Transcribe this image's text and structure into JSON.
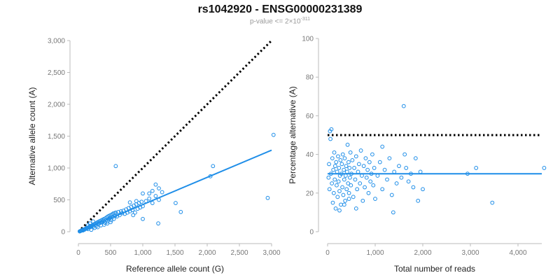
{
  "header": {
    "title": "rs1042920 - ENSG00000231389",
    "subtitle_prefix": "p-value <= 2×10",
    "subtitle_exp": "-311"
  },
  "colors": {
    "points": "#1f8ee8",
    "fit": "#1f8ee8",
    "reference": "#000000",
    "axis": "#bbbbbb"
  },
  "chart_data": [
    {
      "type": "scatter",
      "xlabel": "Reference allele count (G)",
      "ylabel": "Alternative allele count (A)",
      "xlim": [
        0,
        3000
      ],
      "ylim": [
        0,
        3000
      ],
      "xticks": [
        0,
        500,
        1000,
        1500,
        2000,
        2500,
        3000
      ],
      "yticks": [
        0,
        500,
        1000,
        1500,
        2000,
        2500,
        3000
      ],
      "xtick_labels": [
        "0",
        "500",
        "1,000",
        "1,500",
        "2,000",
        "2,500",
        "3,000"
      ],
      "ytick_labels": [
        "0",
        "500",
        "1,000",
        "1,500",
        "2,000",
        "2,500",
        "3,000"
      ],
      "reference_line": {
        "style": "dotted",
        "from": [
          0,
          0
        ],
        "to": [
          3000,
          3000
        ]
      },
      "fit_line": {
        "from": [
          0,
          0
        ],
        "to": [
          3000,
          1280
        ]
      },
      "points": [
        [
          20,
          5
        ],
        [
          30,
          10
        ],
        [
          40,
          15
        ],
        [
          50,
          20
        ],
        [
          60,
          25
        ],
        [
          70,
          20
        ],
        [
          80,
          35
        ],
        [
          90,
          30
        ],
        [
          100,
          40
        ],
        [
          110,
          45
        ],
        [
          120,
          55
        ],
        [
          130,
          50
        ],
        [
          140,
          60
        ],
        [
          150,
          40
        ],
        [
          160,
          70
        ],
        [
          170,
          65
        ],
        [
          180,
          90
        ],
        [
          190,
          75
        ],
        [
          200,
          85
        ],
        [
          210,
          95
        ],
        [
          220,
          100
        ],
        [
          230,
          80
        ],
        [
          240,
          110
        ],
        [
          250,
          120
        ],
        [
          260,
          105
        ],
        [
          270,
          130
        ],
        [
          280,
          90
        ],
        [
          290,
          140
        ],
        [
          300,
          150
        ],
        [
          310,
          125
        ],
        [
          320,
          160
        ],
        [
          330,
          135
        ],
        [
          340,
          170
        ],
        [
          350,
          145
        ],
        [
          360,
          180
        ],
        [
          370,
          155
        ],
        [
          380,
          190
        ],
        [
          390,
          170
        ],
        [
          400,
          200
        ],
        [
          410,
          140
        ],
        [
          420,
          210
        ],
        [
          430,
          185
        ],
        [
          440,
          225
        ],
        [
          450,
          160
        ],
        [
          460,
          240
        ],
        [
          470,
          200
        ],
        [
          480,
          250
        ],
        [
          490,
          215
        ],
        [
          500,
          260
        ],
        [
          510,
          180
        ],
        [
          520,
          270
        ],
        [
          530,
          230
        ],
        [
          540,
          285
        ],
        [
          550,
          200
        ],
        [
          560,
          290
        ],
        [
          570,
          250
        ],
        [
          580,
          300
        ],
        [
          600,
          240
        ],
        [
          620,
          310
        ],
        [
          640,
          260
        ],
        [
          660,
          320
        ],
        [
          680,
          290
        ],
        [
          700,
          330
        ],
        [
          720,
          280
        ],
        [
          740,
          350
        ],
        [
          760,
          300
        ],
        [
          780,
          370
        ],
        [
          800,
          320
        ],
        [
          820,
          390
        ],
        [
          840,
          340
        ],
        [
          860,
          410
        ],
        [
          880,
          300
        ],
        [
          900,
          430
        ],
        [
          920,
          360
        ],
        [
          940,
          450
        ],
        [
          960,
          380
        ],
        [
          980,
          470
        ],
        [
          1000,
          400
        ],
        [
          1050,
          480
        ],
        [
          1100,
          520
        ],
        [
          1150,
          450
        ],
        [
          1200,
          560
        ],
        [
          1250,
          500
        ],
        [
          1300,
          620
        ],
        [
          1000,
          600
        ],
        [
          1100,
          600
        ],
        [
          1150,
          640
        ],
        [
          1200,
          740
        ],
        [
          1250,
          680
        ],
        [
          900,
          480
        ],
        [
          800,
          460
        ],
        [
          1000,
          200
        ],
        [
          850,
          260
        ],
        [
          1240,
          130
        ],
        [
          1510,
          450
        ],
        [
          1590,
          310
        ],
        [
          2050,
          870
        ],
        [
          2090,
          1030
        ],
        [
          2940,
          530
        ],
        [
          3030,
          1520
        ],
        [
          580,
          1030
        ],
        [
          200,
          30
        ],
        [
          250,
          60
        ],
        [
          300,
          70
        ],
        [
          350,
          100
        ],
        [
          400,
          110
        ],
        [
          450,
          130
        ],
        [
          500,
          150
        ],
        [
          150,
          100
        ],
        [
          180,
          130
        ],
        [
          230,
          160
        ]
      ]
    },
    {
      "type": "scatter",
      "xlabel": "Total number of reads",
      "ylabel": "Percentage alternative (A)",
      "xlim": [
        0,
        4500
      ],
      "ylim": [
        0,
        100
      ],
      "xticks": [
        0,
        1000,
        2000,
        3000,
        4000
      ],
      "yticks": [
        0,
        20,
        40,
        60,
        80,
        100
      ],
      "xtick_labels": [
        "0",
        "1,000",
        "2,000",
        "3,000",
        "4,000"
      ],
      "ytick_labels": [
        "0",
        "20",
        "40",
        "60",
        "80",
        "100"
      ],
      "reference_line": {
        "style": "dotted",
        "from": [
          0,
          50
        ],
        "to": [
          4500,
          50
        ]
      },
      "fit_line": {
        "from": [
          0,
          30
        ],
        "to": [
          4500,
          30
        ]
      },
      "points": [
        [
          20,
          28
        ],
        [
          30,
          35
        ],
        [
          40,
          22
        ],
        [
          50,
          52
        ],
        [
          60,
          48
        ],
        [
          70,
          30
        ],
        [
          80,
          53
        ],
        [
          90,
          25
        ],
        [
          100,
          38
        ],
        [
          110,
          15
        ],
        [
          120,
          32
        ],
        [
          130,
          20
        ],
        [
          140,
          41
        ],
        [
          150,
          27
        ],
        [
          160,
          34
        ],
        [
          170,
          12
        ],
        [
          180,
          36
        ],
        [
          190,
          24
        ],
        [
          200,
          31
        ],
        [
          210,
          18
        ],
        [
          220,
          39
        ],
        [
          230,
          26
        ],
        [
          240,
          33
        ],
        [
          250,
          21
        ],
        [
          260,
          29
        ],
        [
          270,
          37
        ],
        [
          280,
          14
        ],
        [
          290,
          30
        ],
        [
          300,
          35
        ],
        [
          310,
          23
        ],
        [
          320,
          40
        ],
        [
          330,
          19
        ],
        [
          340,
          32
        ],
        [
          350,
          27
        ],
        [
          360,
          38
        ],
        [
          370,
          16
        ],
        [
          380,
          29
        ],
        [
          390,
          34
        ],
        [
          400,
          22
        ],
        [
          410,
          31
        ],
        [
          420,
          45
        ],
        [
          430,
          25
        ],
        [
          440,
          36
        ],
        [
          450,
          20
        ],
        [
          460,
          33
        ],
        [
          470,
          28
        ],
        [
          480,
          41
        ],
        [
          490,
          24
        ],
        [
          500,
          30
        ],
        [
          520,
          37
        ],
        [
          540,
          18
        ],
        [
          560,
          33
        ],
        [
          580,
          27
        ],
        [
          600,
          39
        ],
        [
          620,
          22
        ],
        [
          640,
          31
        ],
        [
          660,
          35
        ],
        [
          680,
          25
        ],
        [
          700,
          42
        ],
        [
          720,
          29
        ],
        [
          740,
          16
        ],
        [
          760,
          34
        ],
        [
          780,
          23
        ],
        [
          800,
          38
        ],
        [
          820,
          28
        ],
        [
          840,
          32
        ],
        [
          860,
          20
        ],
        [
          880,
          36
        ],
        [
          900,
          26
        ],
        [
          920,
          30
        ],
        [
          940,
          40
        ],
        [
          960,
          24
        ],
        [
          980,
          33
        ],
        [
          1000,
          17
        ],
        [
          1050,
          29
        ],
        [
          1100,
          36
        ],
        [
          1150,
          22
        ],
        [
          1200,
          32
        ],
        [
          1250,
          27
        ],
        [
          1300,
          38
        ],
        [
          1350,
          19
        ],
        [
          1400,
          31
        ],
        [
          1450,
          25
        ],
        [
          1500,
          34
        ],
        [
          1550,
          28
        ],
        [
          1600,
          65
        ],
        [
          1620,
          40
        ],
        [
          1650,
          33
        ],
        [
          1700,
          26
        ],
        [
          1750,
          30
        ],
        [
          1800,
          23
        ],
        [
          1850,
          38
        ],
        [
          1900,
          16
        ],
        [
          1950,
          31
        ],
        [
          2000,
          22
        ],
        [
          2940,
          30
        ],
        [
          3120,
          33
        ],
        [
          3460,
          15
        ],
        [
          4550,
          33
        ],
        [
          250,
          11
        ],
        [
          350,
          14
        ],
        [
          450,
          17
        ],
        [
          600,
          12
        ],
        [
          1380,
          10
        ],
        [
          1150,
          44
        ]
      ]
    }
  ]
}
